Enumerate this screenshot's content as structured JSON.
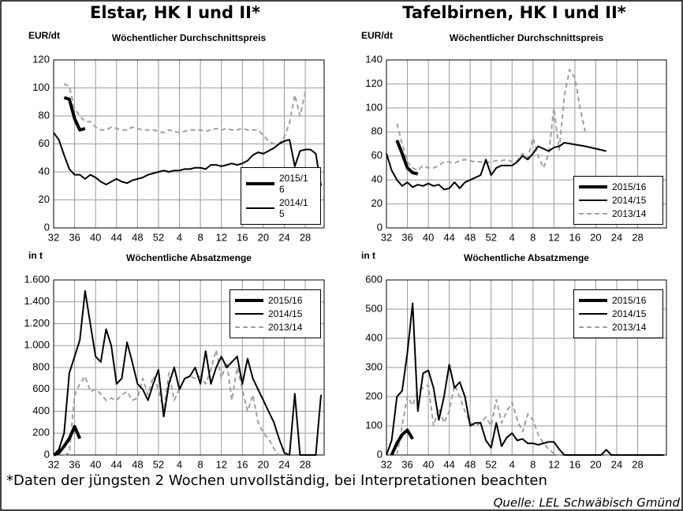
{
  "headers": [
    "Elstar, HK I und II*",
    "Tafelbirnen, HK I und II*"
  ],
  "footnote": "*Daten der jüngsten 2 Wochen unvollständig, bei Interpretationen beachten",
  "source": "Quelle: LEL Schwäbisch Gmünd",
  "chart_data": [
    {
      "type": "line",
      "ylabel": "EUR/dt",
      "title": "Wöchentlicher Durchschnittspreis",
      "legend": "lower right",
      "xlim": [
        32,
        83.6
      ],
      "xticks": [
        32,
        36,
        40,
        44,
        48,
        52,
        {
          "value": 56,
          "label": "4"
        },
        {
          "value": 60,
          "label": "8"
        },
        {
          "value": 64,
          "label": "12"
        },
        {
          "value": 68,
          "label": "16"
        },
        {
          "value": 72,
          "label": "20"
        },
        {
          "value": 76,
          "label": "24"
        },
        {
          "value": 80,
          "label": "28"
        }
      ],
      "ylim": [
        0,
        120
      ],
      "yticks": [
        0,
        20,
        40,
        60,
        80,
        100,
        120
      ],
      "grid": true,
      "series": [
        {
          "name": "2015/16",
          "color": "#000000",
          "line_width": 4,
          "dashed": false,
          "x": [
            34,
            35,
            36,
            37,
            38
          ],
          "values": [
            93,
            92,
            78,
            70,
            71
          ]
        },
        {
          "name": "2014/15",
          "color": "#000000",
          "line_width": 2,
          "dashed": false,
          "x": [
            32,
            33,
            34,
            35,
            36,
            37,
            38,
            39,
            40,
            41,
            42,
            43,
            44,
            45,
            46,
            47,
            48,
            49,
            50,
            51,
            52,
            53,
            54,
            55,
            56,
            57,
            58,
            59,
            60,
            61,
            62,
            63,
            64,
            65,
            66,
            67,
            68,
            69,
            70,
            71,
            72,
            73,
            74,
            75,
            76,
            77,
            78,
            79,
            80,
            81,
            82,
            83
          ],
          "values": [
            68,
            63,
            52,
            42,
            38,
            38,
            35,
            38,
            36,
            33,
            31,
            33,
            35,
            33,
            32,
            34,
            35,
            36,
            38,
            39,
            40,
            41,
            40,
            41,
            41,
            42,
            42,
            43,
            43,
            42,
            45,
            45,
            44,
            45,
            46,
            45,
            46,
            48,
            52,
            54,
            53,
            55,
            57,
            60,
            62,
            63,
            44,
            55,
            56,
            56,
            53,
            30
          ]
        },
        {
          "color": "#a0a0a0",
          "line_width": 2,
          "dashed": true,
          "x": [
            34,
            35,
            36,
            37,
            38,
            39,
            40,
            41,
            42,
            43,
            44,
            45,
            46,
            47,
            48,
            49,
            50,
            51,
            52,
            53,
            54,
            55,
            56,
            57,
            58,
            59,
            60,
            61,
            62,
            63,
            64,
            65,
            66,
            67,
            68,
            69,
            70,
            71,
            72,
            73,
            74,
            75,
            76,
            77,
            78,
            79,
            80
          ],
          "values": [
            103,
            101,
            85,
            80,
            76,
            76,
            72,
            70,
            70,
            72,
            71,
            70,
            70,
            72,
            71,
            70,
            70,
            70,
            69,
            68,
            70,
            69,
            68,
            69,
            70,
            70,
            70,
            69,
            70,
            71,
            70,
            71,
            70,
            70,
            71,
            70,
            70,
            70,
            66,
            62,
            60,
            60,
            65,
            75,
            95,
            80,
            97
          ]
        }
      ]
    },
    {
      "type": "line",
      "ylabel": "EUR/dt",
      "title": "Wöchentlicher Durchschnittspreis",
      "legend": "lower right",
      "xlim": [
        32,
        85.5
      ],
      "xticks": [
        32,
        36,
        40,
        44,
        48,
        52,
        {
          "value": 56,
          "label": "4"
        },
        {
          "value": 60,
          "label": "8"
        },
        {
          "value": 64,
          "label": "12"
        },
        {
          "value": 68,
          "label": "16"
        },
        {
          "value": 72,
          "label": "20"
        },
        {
          "value": 76,
          "label": "24"
        },
        {
          "value": 80,
          "label": "28"
        }
      ],
      "ylim": [
        0,
        140
      ],
      "yticks": [
        0,
        20,
        40,
        60,
        80,
        100,
        120,
        140
      ],
      "grid": true,
      "series": [
        {
          "name": "2015/16",
          "color": "#000000",
          "line_width": 4,
          "dashed": false,
          "x": [
            34,
            35,
            36,
            37,
            38
          ],
          "values": [
            73,
            62,
            50,
            46,
            45
          ]
        },
        {
          "name": "2014/15",
          "color": "#000000",
          "line_width": 2,
          "dashed": false,
          "x": [
            32,
            33,
            34,
            35,
            36,
            37,
            38,
            39,
            40,
            41,
            42,
            43,
            44,
            45,
            46,
            47,
            48,
            49,
            50,
            51,
            52,
            53,
            54,
            55,
            56,
            57,
            58,
            59,
            60,
            61,
            62,
            63,
            64,
            65,
            66,
            70,
            74
          ],
          "values": [
            62,
            48,
            40,
            35,
            38,
            34,
            36,
            35,
            37,
            35,
            36,
            32,
            33,
            38,
            33,
            38,
            40,
            42,
            44,
            57,
            44,
            50,
            52,
            52,
            52,
            55,
            60,
            57,
            62,
            68,
            66,
            64,
            67,
            68,
            71,
            68,
            64
          ]
        },
        {
          "name": "2013/14",
          "color": "#a0a0a0",
          "line_width": 2,
          "dashed": true,
          "x": [
            34,
            35,
            36,
            37,
            38,
            39,
            40,
            41,
            42,
            43,
            44,
            45,
            46,
            47,
            48,
            49,
            50,
            51,
            52,
            53,
            54,
            55,
            56,
            57,
            58,
            59,
            60,
            61,
            62,
            63,
            64,
            65,
            66,
            67,
            68,
            69,
            70
          ],
          "values": [
            87,
            70,
            55,
            50,
            48,
            52,
            50,
            50,
            52,
            55,
            55,
            54,
            56,
            57,
            56,
            55,
            55,
            54,
            55,
            56,
            56,
            57,
            55,
            56,
            62,
            58,
            75,
            60,
            50,
            62,
            100,
            65,
            110,
            132,
            125,
            100,
            80
          ]
        }
      ]
    },
    {
      "type": "line",
      "ylabel": "in t",
      "title": "Wöchentliche Absatzmenge",
      "legend": "upper right",
      "xlim": [
        32,
        83.6
      ],
      "xticks": [
        32,
        36,
        40,
        44,
        48,
        52,
        {
          "value": 56,
          "label": "4"
        },
        {
          "value": 60,
          "label": "8"
        },
        {
          "value": 64,
          "label": "12"
        },
        {
          "value": 68,
          "label": "16"
        },
        {
          "value": 72,
          "label": "20"
        },
        {
          "value": 76,
          "label": "24"
        },
        {
          "value": 80,
          "label": "28"
        }
      ],
      "ylim": [
        0,
        1600
      ],
      "yticks": [
        0,
        200,
        400,
        600,
        800,
        {
          "value": 1000,
          "label": "1.000"
        },
        {
          "value": 1200,
          "label": "1.200"
        },
        {
          "value": 1400,
          "label": "1.400"
        },
        {
          "value": 1600,
          "label": "1.600"
        }
      ],
      "grid": true,
      "series": [
        {
          "name": "2015/16",
          "color": "#000000",
          "line_width": 4,
          "dashed": false,
          "x": [
            32,
            33,
            34,
            35,
            36,
            37
          ],
          "values": [
            0,
            20,
            80,
            150,
            260,
            150
          ]
        },
        {
          "name": "2014/15",
          "color": "#000000",
          "line_width": 2,
          "dashed": false,
          "x": [
            32,
            33,
            34,
            35,
            36,
            37,
            38,
            39,
            40,
            41,
            42,
            43,
            44,
            45,
            46,
            47,
            48,
            49,
            50,
            51,
            52,
            53,
            54,
            55,
            56,
            57,
            58,
            59,
            60,
            61,
            62,
            63,
            64,
            65,
            66,
            67,
            68,
            69,
            70,
            71,
            72,
            73,
            74,
            75,
            76,
            77,
            78,
            79,
            80,
            81,
            82,
            83
          ],
          "values": [
            0,
            50,
            200,
            750,
            900,
            1050,
            1500,
            1200,
            900,
            850,
            1150,
            1000,
            650,
            700,
            1030,
            850,
            650,
            600,
            500,
            650,
            780,
            350,
            650,
            800,
            600,
            700,
            720,
            800,
            650,
            950,
            650,
            800,
            900,
            800,
            850,
            900,
            650,
            880,
            700,
            600,
            500,
            400,
            300,
            150,
            20,
            0,
            560,
            0,
            0,
            0,
            0,
            550
          ]
        },
        {
          "name": "2013/14",
          "color": "#a0a0a0",
          "line_width": 2,
          "dashed": true,
          "x": [
            34,
            35,
            36,
            37,
            38,
            39,
            40,
            41,
            42,
            43,
            44,
            45,
            46,
            47,
            48,
            49,
            50,
            51,
            52,
            53,
            54,
            55,
            56,
            57,
            58,
            59,
            60,
            61,
            62,
            63,
            64,
            65,
            66,
            67,
            68,
            69,
            70,
            71,
            72,
            73,
            74,
            75
          ],
          "values": [
            0,
            20,
            550,
            650,
            720,
            580,
            600,
            560,
            500,
            520,
            500,
            550,
            580,
            500,
            520,
            700,
            550,
            720,
            600,
            400,
            750,
            500,
            600,
            700,
            720,
            700,
            720,
            650,
            780,
            960,
            700,
            850,
            500,
            800,
            600,
            400,
            550,
            300,
            200,
            150,
            60,
            0
          ]
        }
      ]
    },
    {
      "type": "line",
      "ylabel": "in t",
      "title": "Wöchentliche Absatzmenge",
      "legend": "upper right",
      "xlim": [
        32,
        85.5
      ],
      "xticks": [
        32,
        36,
        40,
        44,
        48,
        52,
        {
          "value": 56,
          "label": "4"
        },
        {
          "value": 60,
          "label": "8"
        },
        {
          "value": 64,
          "label": "12"
        },
        {
          "value": 68,
          "label": "16"
        },
        {
          "value": 72,
          "label": "20"
        },
        {
          "value": 76,
          "label": "24"
        },
        {
          "value": 80,
          "label": "28"
        }
      ],
      "ylim": [
        0,
        600
      ],
      "yticks": [
        0,
        100,
        200,
        300,
        400,
        500,
        600
      ],
      "grid": true,
      "series": [
        {
          "name": "2015/16",
          "color": "#000000",
          "line_width": 4,
          "dashed": false,
          "x": [
            33,
            34,
            35,
            36,
            37
          ],
          "values": [
            0,
            40,
            70,
            85,
            55
          ]
        },
        {
          "name": "2014/15",
          "color": "#000000",
          "line_width": 2,
          "dashed": false,
          "x": [
            32,
            33,
            34,
            35,
            36,
            37,
            38,
            39,
            40,
            41,
            42,
            43,
            44,
            45,
            46,
            47,
            48,
            49,
            50,
            51,
            52,
            53,
            54,
            55,
            56,
            57,
            58,
            59,
            60,
            61,
            62,
            63,
            64,
            65,
            66,
            68,
            70,
            72,
            73,
            74,
            75,
            78,
            82,
            85
          ],
          "values": [
            0,
            50,
            200,
            220,
            350,
            520,
            150,
            280,
            290,
            230,
            120,
            200,
            310,
            230,
            250,
            200,
            100,
            110,
            110,
            50,
            25,
            110,
            30,
            60,
            75,
            50,
            55,
            40,
            40,
            35,
            40,
            45,
            45,
            20,
            0,
            0,
            0,
            0,
            0,
            18,
            0,
            0,
            0,
            0
          ]
        },
        {
          "name": "2013/14",
          "color": "#a0a0a0",
          "line_width": 2,
          "dashed": true,
          "x": [
            34,
            35,
            36,
            37,
            38,
            39,
            40,
            41,
            42,
            43,
            44,
            45,
            46,
            47,
            48,
            49,
            50,
            51,
            52,
            53,
            54,
            55,
            56,
            57,
            58,
            59,
            60,
            61,
            62,
            63,
            64,
            65,
            66,
            70,
            75,
            80,
            85
          ],
          "values": [
            0,
            100,
            200,
            170,
            220,
            230,
            240,
            100,
            160,
            110,
            150,
            240,
            200,
            150,
            110,
            100,
            110,
            130,
            100,
            190,
            110,
            150,
            180,
            120,
            80,
            140,
            120,
            70,
            40,
            20,
            5,
            0,
            0,
            0,
            0,
            0,
            0
          ]
        }
      ]
    }
  ]
}
